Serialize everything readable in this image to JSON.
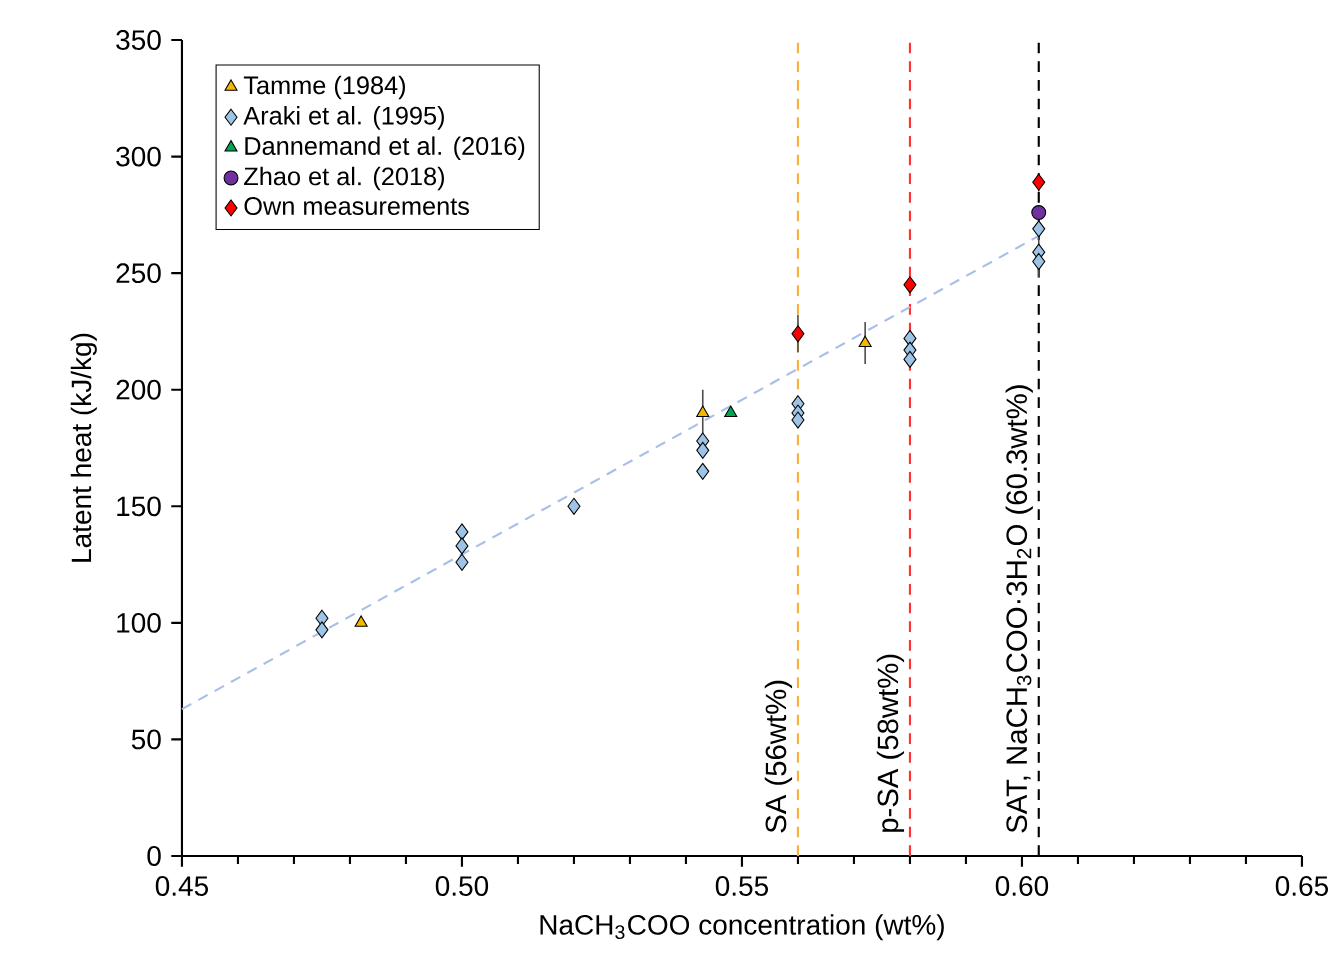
{
  "chart_data": {
    "type": "scatter",
    "xlabel": "NaCH$_{3}$COO concentration (wt%)",
    "ylabel": "Latent heat (kJ/kg)",
    "xlim": [
      0.45,
      0.65
    ],
    "xticks": [
      0.45,
      {
        "value": 0.5,
        "label": "0.50"
      },
      0.55,
      {
        "value": 0.6,
        "label": "0.60"
      },
      0.65
    ],
    "ylim": [
      0,
      350
    ],
    "yticks": [
      0,
      50,
      100,
      150,
      200,
      250,
      300,
      350
    ],
    "legend": "top left",
    "series": [
      {
        "name": "Tamme (1984)",
        "color": "#f5b800",
        "marker": "triangle",
        "x": [
          0.482,
          0.543,
          0.572
        ],
        "values": [
          100,
          190,
          220
        ],
        "errors": [
          null,
          10,
          9
        ]
      },
      {
        "name": "Araki et al. (1995)",
        "color": "#9dc3e6",
        "marker": "diamond",
        "x": [
          0.475,
          0.475,
          0.5,
          0.5,
          0.5,
          0.52,
          0.543,
          0.543,
          0.543,
          0.56,
          0.56,
          0.56,
          0.58,
          0.58,
          0.58,
          0.603,
          0.603,
          0.603
        ],
        "values": [
          102,
          97,
          139,
          133,
          126,
          150,
          178,
          174,
          165,
          194,
          190,
          187,
          222,
          217,
          213,
          269,
          259,
          255
        ],
        "errors": [
          null,
          null,
          null,
          null,
          null,
          null,
          null,
          null,
          null,
          null,
          null,
          null,
          null,
          null,
          null,
          null,
          11,
          null
        ]
      },
      {
        "name": "Dannemand et al. (2016)",
        "color": "#00a651",
        "marker": "triangle",
        "x": [
          0.548
        ],
        "values": [
          190
        ]
      },
      {
        "name": "Zhao et al. (2018)",
        "color": "#7030a0",
        "marker": "circle",
        "x": [
          0.603
        ],
        "values": [
          276
        ]
      },
      {
        "name": "Own measurements",
        "color": "#ff0000",
        "marker": "diamond",
        "x": [
          0.56,
          0.58,
          0.603
        ],
        "values": [
          224,
          245,
          289
        ],
        "errors": [
          8,
          null,
          4
        ]
      },
      {
        "type": "line",
        "color": "#a9bfe8",
        "line_style": "dashed",
        "x": [
          0.45,
          0.603
        ],
        "values": [
          63,
          266
        ]
      }
    ],
    "ref_lines": [
      {
        "axis": "x",
        "value": 0.56,
        "label": "SA (56wt%)",
        "color": "#f5b040",
        "line_style": "dashed"
      },
      {
        "axis": "x",
        "value": 0.58,
        "label": "p-SA (58wt%)",
        "color": "#ff3333",
        "line_style": "dashed"
      },
      {
        "axis": "x",
        "value": 0.603,
        "label": "SAT, NaCH$_{3}$COO·3H$_{2}$O (60.3wt%)",
        "color": "#000000",
        "line_style": "dashed"
      }
    ]
  }
}
